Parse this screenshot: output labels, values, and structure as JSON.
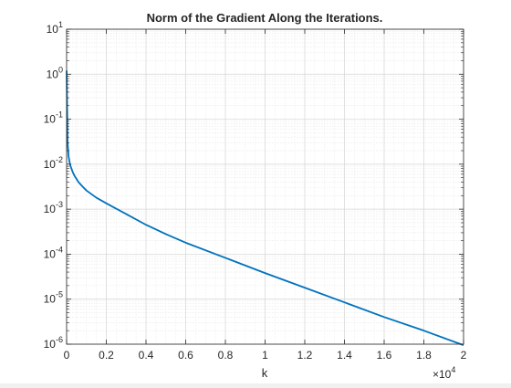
{
  "chart_data": {
    "type": "line",
    "title": "Norm of the Gradient Along the Iterations.",
    "xlabel": "k",
    "ylabel": "",
    "x_multiplier_label": "×10",
    "x_multiplier_exponent": "4",
    "xlim": [
      0,
      20000
    ],
    "ylim": [
      1e-06,
      10
    ],
    "y_scale": "log",
    "grid": true,
    "minor_grid": true,
    "x_ticks": [
      0,
      2000,
      4000,
      6000,
      8000,
      10000,
      12000,
      14000,
      16000,
      18000,
      20000
    ],
    "x_tick_labels": [
      "0",
      "0.2",
      "0.4",
      "0.6",
      "0.8",
      "1",
      "1.2",
      "1.4",
      "1.6",
      "1.8",
      "2"
    ],
    "y_ticks": [
      {
        "value": 10,
        "base": "10",
        "exp": "1"
      },
      {
        "value": 1,
        "base": "10",
        "exp": "0"
      },
      {
        "value": 0.1,
        "base": "10",
        "exp": "-1"
      },
      {
        "value": 0.01,
        "base": "10",
        "exp": "-2"
      },
      {
        "value": 0.001,
        "base": "10",
        "exp": "-3"
      },
      {
        "value": 0.0001,
        "base": "10",
        "exp": "-4"
      },
      {
        "value": 1e-05,
        "base": "10",
        "exp": "-5"
      },
      {
        "value": 1e-06,
        "base": "10",
        "exp": "-6"
      }
    ],
    "series": [
      {
        "color": "#0072bd",
        "x": [
          1,
          50,
          100,
          150,
          200,
          300,
          400,
          600,
          800,
          1000,
          1500,
          2000,
          3000,
          4000,
          5000,
          6000,
          8000,
          10000,
          12000,
          14000,
          16000,
          18000,
          20000
        ],
        "y": [
          1.2,
          0.03,
          0.015,
          0.011,
          0.009,
          0.0068,
          0.0055,
          0.004,
          0.0032,
          0.0026,
          0.0018,
          0.00135,
          0.00078,
          0.00045,
          0.00028,
          0.00018,
          8.3e-05,
          3.8e-05,
          1.8e-05,
          8.5e-06,
          4e-06,
          2e-06,
          9.5e-07
        ]
      }
    ]
  }
}
